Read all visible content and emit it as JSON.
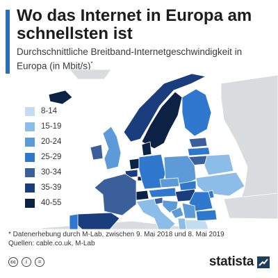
{
  "title": "Wo das Internet in Europa am schnellsten ist",
  "subtitle": "Durchschnittliche Breitband-Internetgeschwindigkeit in Europa (in Mbit/s)",
  "subtitle_mark": "*",
  "legend": [
    {
      "label": "8-14",
      "color": "#c3dcf2"
    },
    {
      "label": "15-19",
      "color": "#8cbde8"
    },
    {
      "label": "20-24",
      "color": "#5c9bd8"
    },
    {
      "label": "25-29",
      "color": "#2f78cd"
    },
    {
      "label": "30-34",
      "color": "#3a5f9a"
    },
    {
      "label": "35-39",
      "color": "#1a3d7e"
    },
    {
      "label": "40-55",
      "color": "#0c2244"
    }
  ],
  "footnote": "* Datenerhebung durch M-Lab, zwischen 9. Mai 2018 und 8. Mai 2019",
  "source": "Quellen: cable.co.uk, M-Lab",
  "license_icons": [
    "cc",
    "i",
    "="
  ],
  "logo": "statista",
  "colors": {
    "accent": "#2b6fb5",
    "water": "#ffffff",
    "non_europe": "#d9dcdf",
    "border": "#ffffff"
  }
}
